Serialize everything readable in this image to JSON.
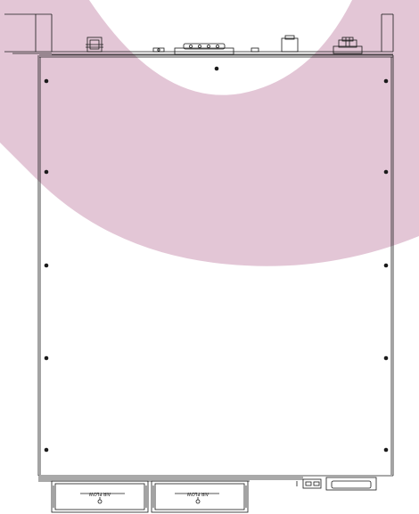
{
  "drawing": {
    "colors": {
      "line": "#1a1a1a",
      "watermark": "#d9b3c8",
      "background": "#ffffff"
    },
    "fans": [
      {
        "label": "AIR FLOW"
      },
      {
        "label": "AIR FLOW"
      }
    ]
  }
}
